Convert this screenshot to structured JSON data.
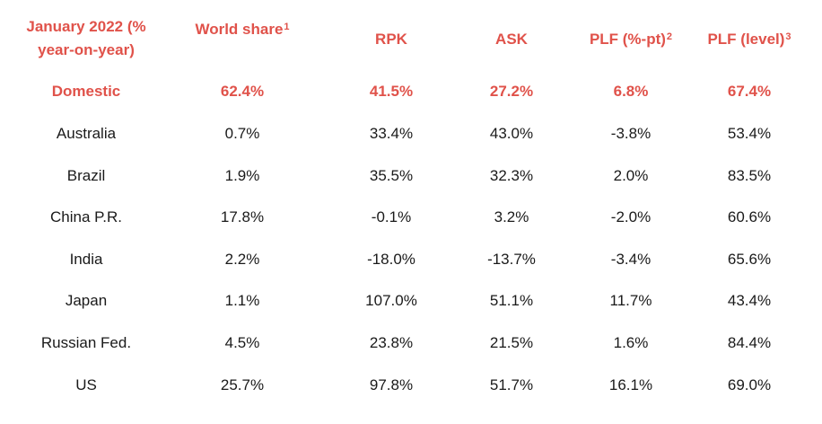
{
  "headers": {
    "col0_line1": "January 2022 (%",
    "col0_line2": "year-on-year)",
    "col1": "World share",
    "col1_sup": "1",
    "col2": "RPK",
    "col3": "ASK",
    "col4": "PLF (%-pt)",
    "col4_sup": "2",
    "col5": "PLF (level)",
    "col5_sup": "3"
  },
  "rows": [
    {
      "region": "Domestic",
      "world_share": "62.4%",
      "rpk": "41.5%",
      "ask": "27.2%",
      "plf_pt": "6.8%",
      "plf_level": "67.4%"
    },
    {
      "region": "Australia",
      "world_share": "0.7%",
      "rpk": "33.4%",
      "ask": "43.0%",
      "plf_pt": "-3.8%",
      "plf_level": "53.4%"
    },
    {
      "region": "Brazil",
      "world_share": "1.9%",
      "rpk": "35.5%",
      "ask": "32.3%",
      "plf_pt": "2.0%",
      "plf_level": "83.5%"
    },
    {
      "region": "China P.R.",
      "world_share": "17.8%",
      "rpk": "-0.1%",
      "ask": "3.2%",
      "plf_pt": "-2.0%",
      "plf_level": "60.6%"
    },
    {
      "region": "India",
      "world_share": "2.2%",
      "rpk": "-18.0%",
      "ask": "-13.7%",
      "plf_pt": "-3.4%",
      "plf_level": "65.6%"
    },
    {
      "region": "Japan",
      "world_share": "1.1%",
      "rpk": "107.0%",
      "ask": "51.1%",
      "plf_pt": "11.7%",
      "plf_level": "43.4%"
    },
    {
      "region": "Russian Fed.",
      "world_share": "4.5%",
      "rpk": "23.8%",
      "ask": "21.5%",
      "plf_pt": "1.6%",
      "plf_level": "84.4%"
    },
    {
      "region": "US",
      "world_share": "25.7%",
      "rpk": "97.8%",
      "ask": "51.7%",
      "plf_pt": "16.1%",
      "plf_level": "69.0%"
    }
  ],
  "colors": {
    "accent": "#e0524a",
    "text": "#1a1a1a"
  }
}
